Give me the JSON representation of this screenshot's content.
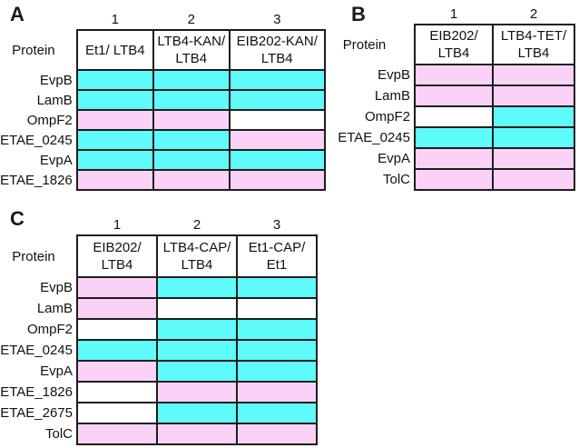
{
  "figure": {
    "colors": {
      "cyan": "#5ffafa",
      "pink": "#fbd2f7",
      "white": "#ffffff",
      "border": "#1d1d1d"
    },
    "panels": [
      {
        "label": "A",
        "protein_header": "Protein",
        "column_numbers": [
          "1",
          "2",
          "3"
        ],
        "column_headers": [
          "Et1/ LTB4",
          "LTB4-KAN/\nLTB4",
          "EIB202-KAN/\nLTB4"
        ],
        "rows": [
          {
            "protein": "EvpB",
            "cells": [
              "cyan",
              "cyan",
              "cyan"
            ]
          },
          {
            "protein": "LamB",
            "cells": [
              "cyan",
              "cyan",
              "cyan"
            ]
          },
          {
            "protein": "OmpF2",
            "cells": [
              "pink",
              "pink",
              "white"
            ]
          },
          {
            "protein": "ETAE_0245",
            "cells": [
              "cyan",
              "cyan",
              "pink"
            ]
          },
          {
            "protein": "EvpA",
            "cells": [
              "cyan",
              "cyan",
              "cyan"
            ]
          },
          {
            "protein": "ETAE_1826",
            "cells": [
              "pink",
              "pink",
              "pink"
            ]
          }
        ]
      },
      {
        "label": "B",
        "protein_header": "Protein",
        "column_numbers": [
          "1",
          "2"
        ],
        "column_headers": [
          "EIB202/\nLTB4",
          "LTB4-TET/\nLTB4"
        ],
        "rows": [
          {
            "protein": "EvpB",
            "cells": [
              "pink",
              "pink"
            ]
          },
          {
            "protein": "LamB",
            "cells": [
              "pink",
              "pink"
            ]
          },
          {
            "protein": "OmpF2",
            "cells": [
              "white",
              "cyan"
            ]
          },
          {
            "protein": "ETAE_0245",
            "cells": [
              "cyan",
              "cyan"
            ]
          },
          {
            "protein": "EvpA",
            "cells": [
              "pink",
              "pink"
            ]
          },
          {
            "protein": "TolC",
            "cells": [
              "pink",
              "pink"
            ]
          }
        ]
      },
      {
        "label": "C",
        "protein_header": "Protein",
        "column_numbers": [
          "1",
          "2",
          "3"
        ],
        "column_headers": [
          "EIB202/\nLTB4",
          "LTB4-CAP/\nLTB4",
          "Et1-CAP/\nEt1"
        ],
        "rows": [
          {
            "protein": "EvpB",
            "cells": [
              "pink",
              "cyan",
              "cyan"
            ]
          },
          {
            "protein": "LamB",
            "cells": [
              "pink",
              "white",
              "white"
            ]
          },
          {
            "protein": "OmpF2",
            "cells": [
              "white",
              "cyan",
              "cyan"
            ]
          },
          {
            "protein": "ETAE_0245",
            "cells": [
              "cyan",
              "cyan",
              "cyan"
            ]
          },
          {
            "protein": "EvpA",
            "cells": [
              "pink",
              "cyan",
              "cyan"
            ]
          },
          {
            "protein": "ETAE_1826",
            "cells": [
              "white",
              "pink",
              "pink"
            ]
          },
          {
            "protein": "ETAE_2675",
            "cells": [
              "white",
              "cyan",
              "cyan"
            ]
          },
          {
            "protein": "TolC",
            "cells": [
              "pink",
              "pink",
              "pink"
            ]
          }
        ]
      }
    ]
  }
}
